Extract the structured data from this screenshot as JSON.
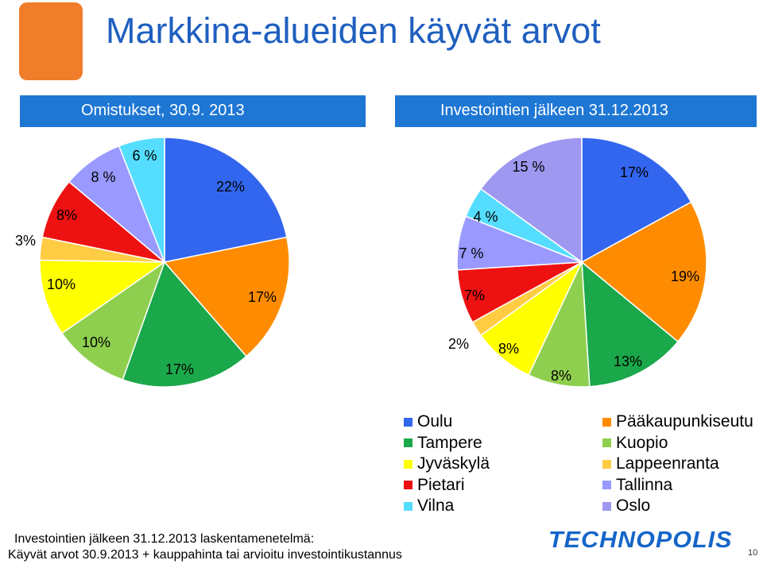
{
  "title": "Markkina-alueiden käyvät arvot",
  "bands": {
    "left": "Omistukset, 30.9. 2013",
    "right": "Investointien jälkeen 31.12.2013"
  },
  "colors": {
    "Oulu": "#3366ee",
    "Pääkaupunkiseutu": "#ff8c00",
    "Tampere": "#1aa84a",
    "Kuopio": "#8fcf4f",
    "Jyväskylä": "#ffff00",
    "Lappeenranta": "#ffcc44",
    "Pietari": "#ee1111",
    "Tallinna": "#9999ff",
    "Vilna": "#55ddff",
    "Oslo": "#9f98f0"
  },
  "legend": {
    "col1": [
      "Oulu",
      "Tampere",
      "Jyväskylä",
      "Pietari",
      "Vilna"
    ],
    "col2": [
      "Pääkaupunkiseutu",
      "Kuopio",
      "Lappeenranta",
      "Tallinna",
      "Oslo"
    ]
  },
  "chart_data": [
    {
      "type": "pie",
      "title": "Omistukset, 30.9. 2013",
      "categories": [
        "Oulu",
        "Pääkaupunkiseutu",
        "Tampere",
        "Kuopio",
        "Jyväskylä",
        "Lappeenranta",
        "Pietari",
        "Tallinna",
        "Vilna"
      ],
      "values": [
        22,
        17,
        17,
        10,
        10,
        3,
        8,
        8,
        6
      ],
      "labels": [
        "22%",
        "17%",
        "17%",
        "10%",
        "10%",
        "3%",
        "8%",
        "8 %",
        "6 %"
      ]
    },
    {
      "type": "pie",
      "title": "Investointien jälkeen 31.12.2013",
      "categories": [
        "Oulu",
        "Pääkaupunkiseutu",
        "Tampere",
        "Kuopio",
        "Jyväskylä",
        "Lappeenranta",
        "Pietari",
        "Tallinna",
        "Vilna",
        "Oslo"
      ],
      "values": [
        17,
        19,
        13,
        8,
        8,
        2,
        7,
        7,
        4,
        15
      ],
      "labels": [
        "17%",
        "19%",
        "13%",
        "8%",
        "8%",
        "2%",
        "7%",
        "7 %",
        "4 %",
        "15 %"
      ]
    }
  ],
  "footnote": {
    "line1": "Investointien jälkeen 31.12.2013  laskentamenetelmä:",
    "line2": "Käyvät arvot 30.9.2013 + kauppahinta tai arvioitu investointikustannus"
  },
  "brand": "TECHNOPOLIS",
  "page_number": "10"
}
